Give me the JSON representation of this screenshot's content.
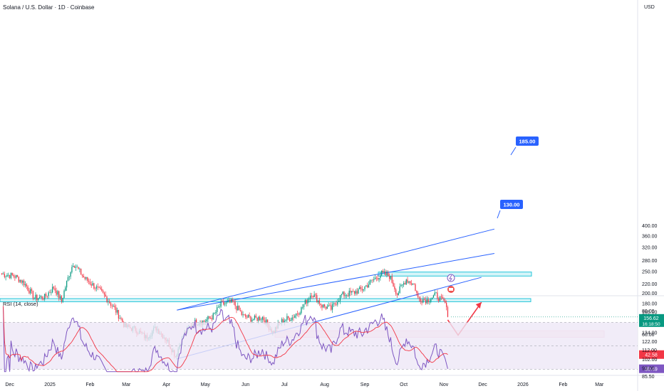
{
  "header": {
    "title": "Solana / U.S. Dollar · 1D · Coinbase",
    "currency": "USD"
  },
  "price_axis_labels": [
    "400.00",
    "360.00",
    "320.00",
    "280.00",
    "250.00",
    "220.00",
    "200.00",
    "180.00",
    "165.00",
    "134.00",
    "122.00",
    "112.00",
    "102.00",
    "93.00",
    "85.50"
  ],
  "rsi_axis_labels": [
    "80.00",
    "60.00"
  ],
  "x_axis_labels": [
    "Dec",
    "2025",
    "Feb",
    "Mar",
    "Apr",
    "May",
    "Jun",
    "Jul",
    "Aug",
    "Sep",
    "Oct",
    "Nov",
    "Dec",
    "2026",
    "Feb",
    "Mar"
  ],
  "last_price": {
    "value": "156.62",
    "countdown": "16:18:50"
  },
  "rsi": {
    "label": "RSI (14, close)",
    "value": "30.49",
    "ma_value": "42.58"
  },
  "annotations": {
    "resistance_label": "185.00",
    "support_label": "130.00"
  },
  "colors": {
    "up": "#089981",
    "down": "#f23645",
    "channel": "#2962ff",
    "zone_fill": "#b2ebf2",
    "zone_border": "#26c6da",
    "support_fill": "#fce4e4",
    "projection": "#f23645",
    "rsi_line": "#7e57c2",
    "rsi_ma": "#f23645",
    "rsi_band": "#ede7f6",
    "price_badge": "#089981",
    "rsi_badge": "#7e57c2"
  },
  "chart_data": [
    {
      "type": "candlestick",
      "title": "Solana / U.S. Dollar · 1D · Coinbase",
      "y_scale": "log",
      "ylim": [
        85.5,
        400
      ],
      "x_range": [
        "Dec 2024",
        "Mar 2026"
      ],
      "price_path": [
        {
          "date": "2024-11-25",
          "close": 243
        },
        {
          "date": "2024-12-05",
          "close": 238
        },
        {
          "date": "2024-12-12",
          "close": 222
        },
        {
          "date": "2024-12-20",
          "close": 190
        },
        {
          "date": "2024-12-28",
          "close": 192
        },
        {
          "date": "2025-01-04",
          "close": 212
        },
        {
          "date": "2025-01-10",
          "close": 184
        },
        {
          "date": "2025-01-19",
          "close": 272
        },
        {
          "date": "2025-01-27",
          "close": 235
        },
        {
          "date": "2025-02-04",
          "close": 215
        },
        {
          "date": "2025-02-12",
          "close": 195
        },
        {
          "date": "2025-02-20",
          "close": 170
        },
        {
          "date": "2025-02-28",
          "close": 142
        },
        {
          "date": "2025-03-08",
          "close": 138
        },
        {
          "date": "2025-03-16",
          "close": 127
        },
        {
          "date": "2025-03-24",
          "close": 140
        },
        {
          "date": "2025-04-01",
          "close": 124
        },
        {
          "date": "2025-04-08",
          "close": 105
        },
        {
          "date": "2025-04-14",
          "close": 130
        },
        {
          "date": "2025-04-22",
          "close": 148
        },
        {
          "date": "2025-04-30",
          "close": 150
        },
        {
          "date": "2025-05-07",
          "close": 158
        },
        {
          "date": "2025-05-13",
          "close": 178
        },
        {
          "date": "2025-05-22",
          "close": 182
        },
        {
          "date": "2025-05-30",
          "close": 158
        },
        {
          "date": "2025-06-07",
          "close": 153
        },
        {
          "date": "2025-06-14",
          "close": 156
        },
        {
          "date": "2025-06-22",
          "close": 134
        },
        {
          "date": "2025-06-30",
          "close": 152
        },
        {
          "date": "2025-07-07",
          "close": 156
        },
        {
          "date": "2025-07-14",
          "close": 170
        },
        {
          "date": "2025-07-22",
          "close": 200
        },
        {
          "date": "2025-07-30",
          "close": 176
        },
        {
          "date": "2025-08-06",
          "close": 170
        },
        {
          "date": "2025-08-14",
          "close": 196
        },
        {
          "date": "2025-08-22",
          "close": 200
        },
        {
          "date": "2025-08-30",
          "close": 208
        },
        {
          "date": "2025-09-08",
          "close": 230
        },
        {
          "date": "2025-09-14",
          "close": 244
        },
        {
          "date": "2025-09-20",
          "close": 238
        },
        {
          "date": "2025-09-26",
          "close": 198
        },
        {
          "date": "2025-10-03",
          "close": 230
        },
        {
          "date": "2025-10-09",
          "close": 218
        },
        {
          "date": "2025-10-12",
          "close": 190
        },
        {
          "date": "2025-10-19",
          "close": 186
        },
        {
          "date": "2025-10-26",
          "close": 196
        },
        {
          "date": "2025-10-30",
          "close": 186
        },
        {
          "date": "2025-11-02",
          "close": 180
        },
        {
          "date": "2025-11-04",
          "close": 156.62
        }
      ],
      "levels": [
        {
          "name": "resistance-zone",
          "from": 183,
          "to": 189
        },
        {
          "name": "supply-zone",
          "from": 238,
          "to": 248
        },
        {
          "name": "support-zone",
          "from": 127,
          "to": 136
        }
      ],
      "channel": {
        "lower": [
          {
            "date": "2025-04-09",
            "price": 102
          },
          {
            "date": "2025-11-30",
            "price": 235
          }
        ],
        "middle": [
          {
            "date": "2025-04-09",
            "price": 168
          },
          {
            "date": "2025-12-10",
            "price": 300
          }
        ],
        "upper": [
          {
            "date": "2025-04-09",
            "price": 168
          },
          {
            "date": "2025-12-10",
            "price": 385
          }
        ]
      },
      "projection": [
        {
          "date": "2025-11-04",
          "price": 152
        },
        {
          "date": "2025-11-12",
          "price": 130
        },
        {
          "date": "2025-11-30",
          "price": 182
        }
      ]
    },
    {
      "type": "line",
      "title": "RSI (14, close)",
      "ylim": [
        30,
        85
      ],
      "guides": [
        70,
        50,
        30
      ],
      "series": [
        {
          "name": "RSI",
          "end_value": 30.49
        },
        {
          "name": "RSI MA",
          "end_value": 42.58
        }
      ]
    }
  ]
}
